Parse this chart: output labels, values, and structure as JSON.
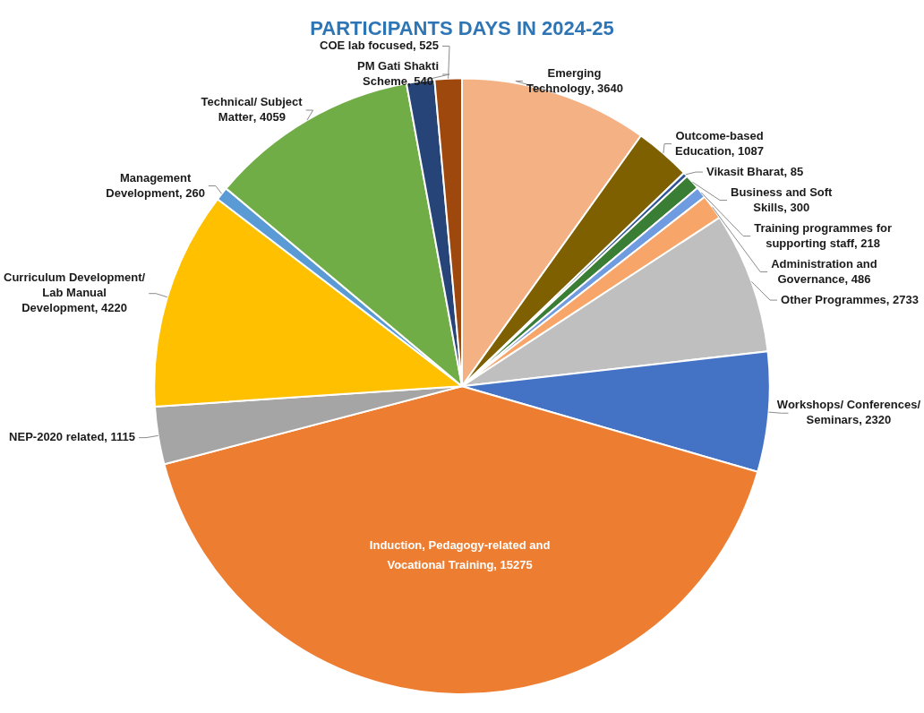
{
  "chart_data": {
    "type": "pie",
    "title": "PARTICIPANTS DAYS IN 2024-25",
    "categories": [
      "Emerging Technology",
      "Outcome-based Education",
      "Vikasit Bharat",
      "Business and Soft Skills",
      "Training programmes for supporting staff",
      "Administration and Governance",
      "Other Programmes",
      "Workshops/ Conferences/ Seminars",
      "Induction, Pedagogy-related and Vocational Training",
      "NEP-2020 related",
      "Curriculum Development/ Lab Manual Development",
      "Management Development",
      "Technical/ Subject Matter",
      "PM Gati Shakti Scheme",
      "COE lab focused"
    ],
    "values": [
      3640,
      1087,
      85,
      300,
      218,
      486,
      2733,
      2320,
      15275,
      1115,
      4220,
      260,
      4059,
      540,
      525
    ],
    "colors": [
      "#f4b183",
      "#7f6000",
      "#2f5597",
      "#3a7d34",
      "#6f9be0",
      "#f8a56a",
      "#bfbfbf",
      "#4472c4",
      "#ed7d31",
      "#a5a5a5",
      "#ffc000",
      "#5b9bd5",
      "#70ad47",
      "#264478",
      "#9e480e"
    ],
    "value_labels": [
      ", 3640",
      ", 1087",
      ", 85",
      ", 300",
      ", 218",
      ", 486",
      ", 2733",
      ", 2320",
      ", 15275",
      ", 1115",
      ", 4220",
      ", 260",
      ", 4059",
      ", 540",
      ", 525"
    ]
  }
}
